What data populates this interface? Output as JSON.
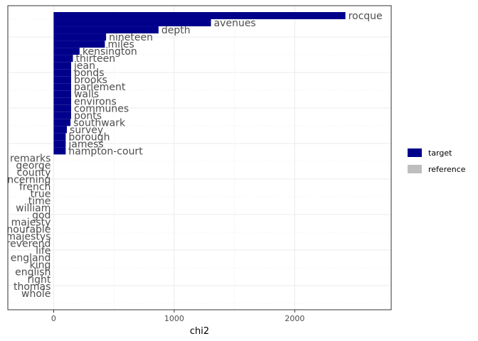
{
  "chart_data": {
    "type": "bar",
    "orientation": "horizontal",
    "xlabel": "chi2",
    "ylabel": "",
    "xlim": [
      -380,
      2800
    ],
    "xticks": [
      0,
      1000,
      2000
    ],
    "grid": true,
    "legend_position": "right",
    "legend": [
      {
        "name": "target",
        "color": "#00008b"
      },
      {
        "name": "reference",
        "color": "#bebebe"
      }
    ],
    "bars": [
      {
        "label": "rocque",
        "value": 2420,
        "group": "target"
      },
      {
        "label": "avenues",
        "value": 1305,
        "group": "target"
      },
      {
        "label": "depth",
        "value": 870,
        "group": "target"
      },
      {
        "label": "nineteen",
        "value": 435,
        "group": "target"
      },
      {
        "label": "miles",
        "value": 425,
        "group": "target"
      },
      {
        "label": "kensington",
        "value": 215,
        "group": "target"
      },
      {
        "label": "thirteen",
        "value": 160,
        "group": "target"
      },
      {
        "label": "jean",
        "value": 145,
        "group": "target"
      },
      {
        "label": "ponds",
        "value": 145,
        "group": "target"
      },
      {
        "label": "brooks",
        "value": 145,
        "group": "target"
      },
      {
        "label": "parlement",
        "value": 145,
        "group": "target"
      },
      {
        "label": "walls",
        "value": 145,
        "group": "target"
      },
      {
        "label": "environs",
        "value": 145,
        "group": "target"
      },
      {
        "label": "communes",
        "value": 145,
        "group": "target"
      },
      {
        "label": "ponts",
        "value": 145,
        "group": "target"
      },
      {
        "label": "southwark",
        "value": 140,
        "group": "target"
      },
      {
        "label": "survey",
        "value": 110,
        "group": "target"
      },
      {
        "label": "borough",
        "value": 100,
        "group": "target"
      },
      {
        "label": "jamess",
        "value": 100,
        "group": "target"
      },
      {
        "label": "hampton-court",
        "value": 100,
        "group": "target"
      },
      {
        "label": "remarks",
        "value": 0,
        "group": "reference"
      },
      {
        "label": "george",
        "value": 0,
        "group": "reference"
      },
      {
        "label": "county",
        "value": 0,
        "group": "reference"
      },
      {
        "label": "concerning",
        "value": 0,
        "group": "reference"
      },
      {
        "label": "french",
        "value": 0,
        "group": "reference"
      },
      {
        "label": "true",
        "value": 0,
        "group": "reference"
      },
      {
        "label": "time",
        "value": 0,
        "group": "reference"
      },
      {
        "label": "william",
        "value": 0,
        "group": "reference"
      },
      {
        "label": "god",
        "value": 0,
        "group": "reference"
      },
      {
        "label": "majesty",
        "value": 0,
        "group": "reference"
      },
      {
        "label": "honourable",
        "value": 0,
        "group": "reference"
      },
      {
        "label": "majestys",
        "value": 0,
        "group": "reference"
      },
      {
        "label": "reverend",
        "value": 0,
        "group": "reference"
      },
      {
        "label": "life",
        "value": 0,
        "group": "reference"
      },
      {
        "label": "england",
        "value": 0,
        "group": "reference"
      },
      {
        "label": "king",
        "value": 0,
        "group": "reference"
      },
      {
        "label": "english",
        "value": 0,
        "group": "reference"
      },
      {
        "label": "right",
        "value": 0,
        "group": "reference"
      },
      {
        "label": "thomas",
        "value": 0,
        "group": "reference"
      },
      {
        "label": "whole",
        "value": 0,
        "group": "reference"
      }
    ]
  }
}
